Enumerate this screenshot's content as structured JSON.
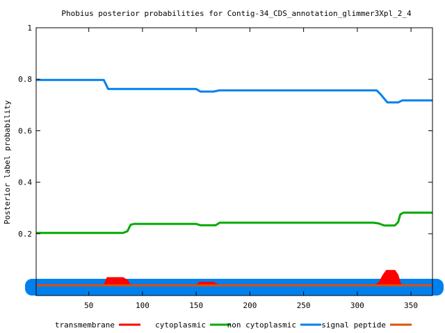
{
  "chart_data": {
    "type": "line",
    "title": "Phobius posterior probabilities for Contig-34_CDS_annotation_glimmer3Xpl_2_4",
    "xlabel": "",
    "ylabel": "Posterior label probability",
    "xlim": [
      1,
      370
    ],
    "ylim": [
      -0.04,
      1
    ],
    "x_ticks": [
      50,
      100,
      150,
      200,
      250,
      300,
      350
    ],
    "y_ticks": [
      0.2,
      0.4,
      0.6,
      0.8,
      1
    ],
    "grid": false,
    "legend_position": "bottom",
    "series": [
      {
        "name": "transmembrane",
        "color": "#ff0000",
        "style": "filled",
        "points": [
          [
            1,
            0
          ],
          [
            64,
            0
          ],
          [
            67,
            0.03
          ],
          [
            82,
            0.03
          ],
          [
            86,
            0.02
          ],
          [
            89,
            0
          ],
          [
            150,
            0
          ],
          [
            153,
            0.012
          ],
          [
            166,
            0.012
          ],
          [
            172,
            0
          ],
          [
            315,
            0
          ],
          [
            320,
            0.01
          ],
          [
            324,
            0.04
          ],
          [
            327,
            0.058
          ],
          [
            335,
            0.058
          ],
          [
            338,
            0.04
          ],
          [
            340,
            0.01
          ],
          [
            342,
            0
          ],
          [
            370,
            0
          ]
        ]
      },
      {
        "name": "cytoplasmic",
        "color": "#00aa00",
        "style": "line",
        "points": [
          [
            1,
            0.203
          ],
          [
            82,
            0.203
          ],
          [
            86,
            0.21
          ],
          [
            89,
            0.235
          ],
          [
            92,
            0.238
          ],
          [
            150,
            0.238
          ],
          [
            154,
            0.233
          ],
          [
            168,
            0.233
          ],
          [
            172,
            0.243
          ],
          [
            315,
            0.243
          ],
          [
            320,
            0.24
          ],
          [
            325,
            0.232
          ],
          [
            335,
            0.232
          ],
          [
            338,
            0.245
          ],
          [
            340,
            0.275
          ],
          [
            343,
            0.282
          ],
          [
            370,
            0.282
          ]
        ]
      },
      {
        "name": "non cytoplasmic",
        "color": "#0080ee",
        "style": "line",
        "points": [
          [
            1,
            0.797
          ],
          [
            64,
            0.797
          ],
          [
            66,
            0.78
          ],
          [
            68,
            0.762
          ],
          [
            150,
            0.762
          ],
          [
            154,
            0.752
          ],
          [
            166,
            0.752
          ],
          [
            172,
            0.757
          ],
          [
            318,
            0.757
          ],
          [
            322,
            0.74
          ],
          [
            326,
            0.72
          ],
          [
            328,
            0.71
          ],
          [
            338,
            0.71
          ],
          [
            342,
            0.718
          ],
          [
            370,
            0.718
          ]
        ]
      },
      {
        "name": "signal peptide",
        "color": "#e05000",
        "style": "line",
        "points": [
          [
            1,
            0
          ],
          [
            370,
            0
          ]
        ]
      }
    ],
    "blue_band": {
      "color": "#0080ee",
      "y_from": -0.04,
      "y_to": 0.025
    }
  }
}
